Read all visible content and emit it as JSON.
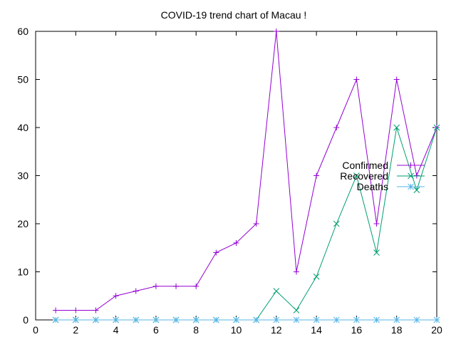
{
  "chart_data": {
    "type": "line",
    "title": "COVID-19 trend chart of Macau !",
    "xlabel": "",
    "ylabel": "",
    "xlim": [
      0,
      20
    ],
    "ylim": [
      0,
      60
    ],
    "xticks": [
      0,
      2,
      4,
      6,
      8,
      10,
      12,
      14,
      16,
      18,
      20
    ],
    "yticks": [
      0,
      10,
      20,
      30,
      40,
      50,
      60
    ],
    "grid": false,
    "legend_placement": "right",
    "x": [
      1,
      2,
      3,
      4,
      5,
      6,
      7,
      8,
      9,
      10,
      11,
      12,
      13,
      14,
      15,
      16,
      17,
      18,
      19,
      20
    ],
    "series": [
      {
        "name": "Confirmed",
        "color": "#9400d3",
        "marker": "plus",
        "values": [
          2,
          2,
          2,
          5,
          6,
          7,
          7,
          7,
          14,
          16,
          20,
          60,
          10,
          30,
          40,
          50,
          20,
          50,
          30,
          40
        ]
      },
      {
        "name": "Recovered",
        "color": "#009e73",
        "marker": "cross",
        "values": [
          0,
          0,
          0,
          0,
          0,
          0,
          0,
          0,
          0,
          0,
          0,
          6,
          2,
          9,
          20,
          30,
          14,
          40,
          27,
          40
        ]
      },
      {
        "name": "Deaths",
        "color": "#56b4e9",
        "marker": "star",
        "values": [
          0,
          0,
          0,
          0,
          0,
          0,
          0,
          0,
          0,
          0,
          0,
          0,
          0,
          0,
          0,
          0,
          0,
          0,
          0,
          0
        ]
      }
    ]
  }
}
